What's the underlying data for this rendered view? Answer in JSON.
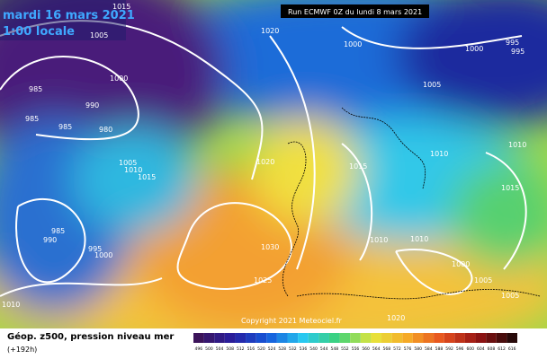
{
  "header": {
    "date": "mardi 16 mars 2021",
    "time": "1:00 locale",
    "run": "Run ECMWF 0Z du lundi 8 mars 2021"
  },
  "isobar_labels": [
    1015,
    1005,
    1020,
    1000,
    1000,
    995,
    995,
    1000,
    985,
    990,
    985,
    985,
    980,
    1005,
    1010,
    1005,
    1010,
    1015,
    1020,
    1015,
    1010,
    1015,
    985,
    990,
    995,
    1000,
    1010,
    1010,
    1030,
    1000,
    1025,
    1005,
    1005,
    1010,
    1020
  ],
  "copyright": "Copyright 2021 Meteociel.fr",
  "footer": {
    "title": "Géop. z500, pression niveau mer",
    "lead": "(+192h)"
  },
  "scale": {
    "labels": [
      496,
      500,
      504,
      508,
      512,
      516,
      520,
      524,
      528,
      532,
      536,
      540,
      544,
      548,
      552,
      556,
      560,
      564,
      568,
      572,
      576,
      580,
      584,
      588,
      592,
      596,
      600,
      604,
      608,
      612,
      616
    ]
  }
}
